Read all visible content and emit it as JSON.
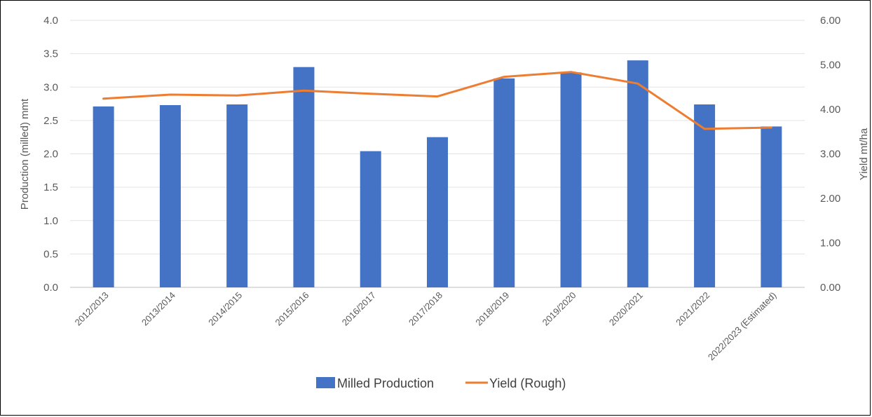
{
  "chart_data": {
    "type": "bar",
    "categories": [
      "2012/2013",
      "2013/2014",
      "2014/2015",
      "2015/2016",
      "2016/2017",
      "2017/2018",
      "2018/2019",
      "2019/2020",
      "2020/2021",
      "2021/2022",
      "2022/2023 (Estimated)"
    ],
    "series": [
      {
        "name": "Milled Production",
        "type": "bar",
        "axis": "left",
        "color": "#4472C4",
        "values": [
          2.71,
          2.73,
          2.74,
          3.3,
          2.04,
          2.25,
          3.13,
          3.22,
          3.4,
          2.74,
          2.41
        ]
      },
      {
        "name": "Yield (Rough)",
        "type": "line",
        "axis": "right",
        "color": "#ED7D31",
        "values": [
          4.24,
          4.33,
          4.31,
          4.42,
          4.35,
          4.29,
          4.73,
          4.84,
          4.58,
          3.56,
          3.59
        ]
      }
    ],
    "ylabel": "Production (milled) mmt",
    "y2label": "Yield mt/ha",
    "ylim": [
      0,
      4.0
    ],
    "y2lim": [
      0,
      6.0
    ],
    "yticks": [
      "0.0",
      "0.5",
      "1.0",
      "1.5",
      "2.0",
      "2.5",
      "3.0",
      "3.5",
      "4.0"
    ],
    "y2ticks": [
      "0.00",
      "1.00",
      "2.00",
      "3.00",
      "4.00",
      "5.00",
      "6.00"
    ],
    "grid": true,
    "legend": "bottom"
  }
}
